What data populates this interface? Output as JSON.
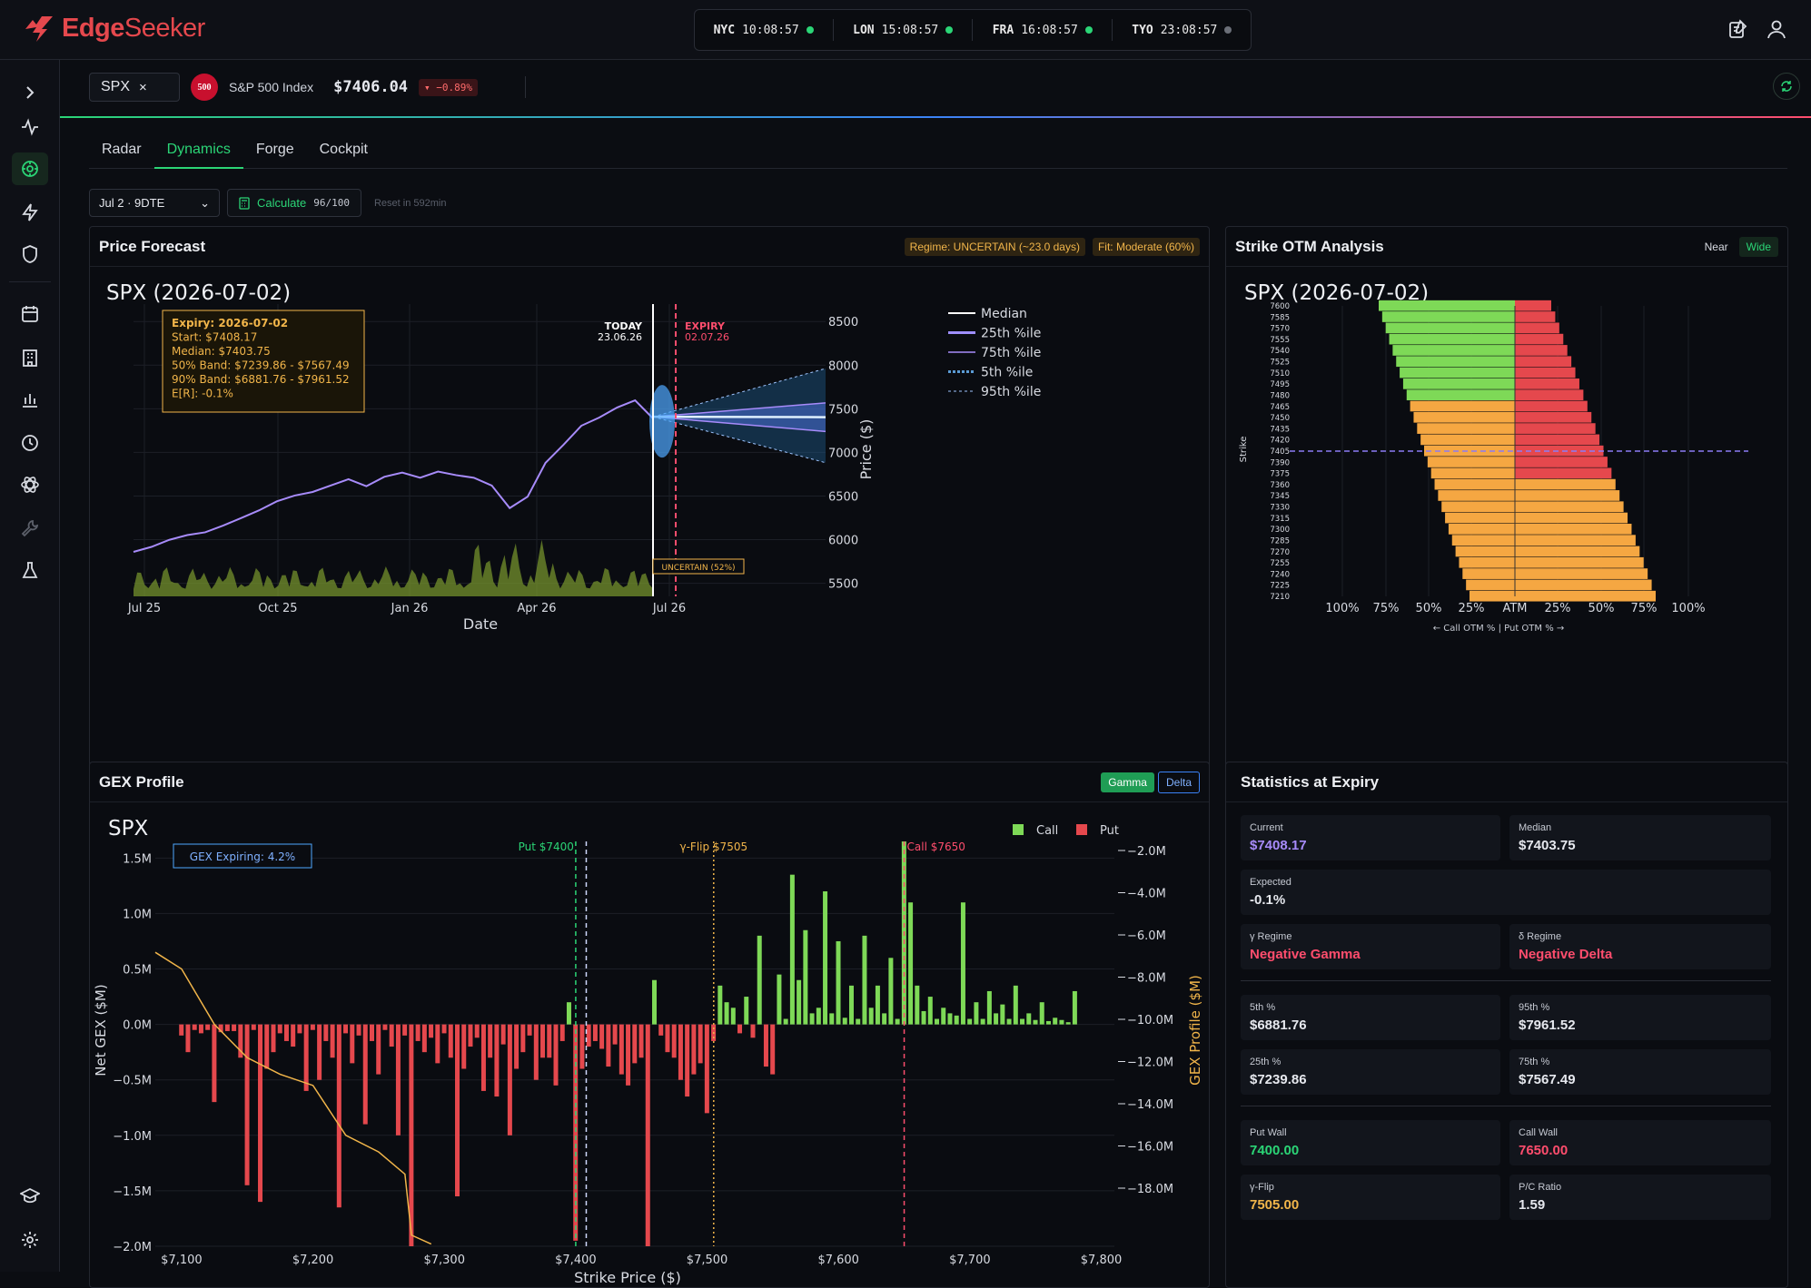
{
  "brand": {
    "name_a": "Edge",
    "name_b": "Seeker",
    "color": "#e5484d"
  },
  "clocks": [
    {
      "city": "NYC",
      "time": "10:08:57",
      "status": "open"
    },
    {
      "city": "LON",
      "time": "15:08:57",
      "status": "open"
    },
    {
      "city": "FRA",
      "time": "16:08:57",
      "status": "open"
    },
    {
      "city": "TYO",
      "time": "23:08:57",
      "status": "closed"
    }
  ],
  "sidebar": {
    "items": [
      "expand-icon",
      "pulse-icon",
      "radar-icon",
      "bolt-icon",
      "shield-icon",
      "calendar-icon",
      "building-icon",
      "chart-icon",
      "clock-icon",
      "atom-icon",
      "wrench-icon",
      "flask-icon",
      "graduation-icon",
      "gear-icon"
    ],
    "active": "radar-icon"
  },
  "ticker": {
    "symbol": "SPX",
    "close": "×",
    "badge": "500",
    "name": "S&P 500 Index",
    "price": "$7406.04",
    "change": "▾ −0.89%"
  },
  "tabs": [
    "Radar",
    "Dynamics",
    "Forge",
    "Cockpit"
  ],
  "active_tab": "Dynamics",
  "toolbar": {
    "expiry": "Jul 2 · 9DTE",
    "calculate": "Calculate",
    "quota": "96/100",
    "reset": "Reset in 592min"
  },
  "forecast": {
    "title": "Price Forecast",
    "regime": "Regime: UNCERTAIN (~23.0 days)",
    "fit": "Fit: Moderate (60%)",
    "chart_title": "SPX (2026-07-02)",
    "tooltip": [
      "Expiry: 2026-07-02",
      "Start: $7408.17",
      "Median: $7403.75",
      "50% Band: $7239.86 - $7567.49",
      "90% Band: $6881.76 - $7961.52",
      "E[R]: -0.1%"
    ],
    "today_label": "TODAY",
    "today_date": "23.06.26",
    "expiry_label": "EXPIRY",
    "expiry_date": "02.07.26",
    "uncertain": "UNCERTAIN (52%)",
    "xlabel": "Date",
    "ylabel": "Price ($)"
  },
  "otm": {
    "title": "Strike OTM Analysis",
    "near": "Near",
    "wide": "Wide",
    "chart_title": "SPX (2026-07-02)",
    "ylabel": "Strike",
    "caption": "← Call OTM %  |  Put OTM % →"
  },
  "gex": {
    "title": "GEX Profile",
    "gamma": "Gamma",
    "delta": "Delta",
    "chart_title": "SPX",
    "legend_call": "Call",
    "legend_put": "Put",
    "expiring": "GEX Expiring: 4.2%",
    "put_label": "Put $7400",
    "flip_label": "γ-Flip $7505",
    "call_label": "Call $7650",
    "xlabel": "Strike Price ($)",
    "ylabel": "Net GEX ($M)",
    "y2label": "GEX Profile ($M)"
  },
  "stats": {
    "title": "Statistics at Expiry",
    "current_l": "Current",
    "current_v": "$7408.17",
    "median_l": "Median",
    "median_v": "$7403.75",
    "expected_l": "Expected",
    "expected_v": "-0.1%",
    "greg_l": "γ Regime",
    "greg_v": "Negative Gamma",
    "dreg_l": "δ Regime",
    "dreg_v": "Negative Delta",
    "p5_l": "5th %",
    "p5_v": "$6881.76",
    "p95_l": "95th %",
    "p95_v": "$7961.52",
    "p25_l": "25th %",
    "p25_v": "$7239.86",
    "p75_l": "75th %",
    "p75_v": "$7567.49",
    "pw_l": "Put Wall",
    "pw_v": "7400.00",
    "cw_l": "Call Wall",
    "cw_v": "7650.00",
    "flip_l": "γ-Flip",
    "flip_v": "7505.00",
    "pc_l": "P/C Ratio",
    "pc_v": "1.59"
  },
  "chart_data": [
    {
      "type": "line",
      "title": "SPX (2026-07-02)",
      "xlabel": "Date",
      "ylabel": "Price ($)",
      "x_ticks": [
        "Jul 25",
        "Oct 25",
        "Jan 26",
        "Apr 26",
        "Jul 26"
      ],
      "y_ticks": [
        5500,
        6000,
        6500,
        7000,
        7500,
        8000,
        8500
      ],
      "ylim": [
        5350,
        8700
      ],
      "legend": [
        "Median",
        "25th %ile",
        "75th %ile",
        "5th %ile",
        "95th %ile"
      ],
      "history": [
        5860,
        5900,
        5980,
        6050,
        6100,
        6180,
        6250,
        6320,
        6420,
        6500,
        6560,
        6640,
        6700,
        6600,
        6700,
        6760,
        6720,
        6800,
        6750,
        6700,
        6600,
        6350,
        6500,
        6900,
        7100,
        7300,
        7380,
        7500,
        7600,
        7408
      ],
      "forecast": {
        "start": 7408.17,
        "median": 7403.75,
        "p25": 7239.86,
        "p75": 7567.49,
        "p5": 6881.76,
        "p95": 7961.52
      }
    },
    {
      "type": "bar",
      "title": "SPX (2026-07-02)",
      "ylabel": "Strike",
      "strikes_top": 7600,
      "strikes_bottom": 7210,
      "step": 15,
      "atm": 7405,
      "x_ticks": [
        "100%",
        "75%",
        "50%",
        "25%",
        "ATM",
        "25%",
        "50%",
        "75%",
        "100%"
      ]
    },
    {
      "type": "bar",
      "title": "SPX",
      "xlabel": "Strike Price ($)",
      "ylabel": "Net GEX ($M)",
      "y2label": "GEX Profile ($M)",
      "x_ticks": [
        "$7,100",
        "$7,200",
        "$7,300",
        "$7,400",
        "$7,500",
        "$7,600",
        "$7,700",
        "$7,800"
      ],
      "y_ticks": [
        "1.5M",
        "1.0M",
        "0.5M",
        "0.0M",
        "−0.5M",
        "−1.0M",
        "−1.5M",
        "−2.0M"
      ],
      "y2_ticks": [
        "−2.0M",
        "−4.0M",
        "−6.0M",
        "−8.0M",
        "−10.0M",
        "−12.0M",
        "−14.0M",
        "−16.0M",
        "−18.0M"
      ],
      "xlim": [
        7080,
        7810
      ],
      "ylim": [
        -2.0,
        1.65
      ],
      "bars": [
        [
          7100,
          -0.1
        ],
        [
          7105,
          -0.25
        ],
        [
          7110,
          -0.05
        ],
        [
          7115,
          -0.08
        ],
        [
          7120,
          -0.05
        ],
        [
          7125,
          -0.7
        ],
        [
          7130,
          -0.07
        ],
        [
          7135,
          -0.06
        ],
        [
          7140,
          -0.06
        ],
        [
          7145,
          -0.3
        ],
        [
          7150,
          -1.45
        ],
        [
          7155,
          -0.05
        ],
        [
          7160,
          -1.6
        ],
        [
          7165,
          -0.4
        ],
        [
          7170,
          -0.25
        ],
        [
          7175,
          -0.08
        ],
        [
          7180,
          -0.15
        ],
        [
          7185,
          -0.2
        ],
        [
          7190,
          -0.08
        ],
        [
          7195,
          -0.6
        ],
        [
          7200,
          -0.05
        ],
        [
          7205,
          -0.5
        ],
        [
          7210,
          -0.15
        ],
        [
          7215,
          -0.3
        ],
        [
          7220,
          -1.65
        ],
        [
          7225,
          -0.08
        ],
        [
          7230,
          -0.35
        ],
        [
          7235,
          -0.1
        ],
        [
          7240,
          -0.9
        ],
        [
          7245,
          -0.15
        ],
        [
          7250,
          -0.45
        ],
        [
          7255,
          -0.05
        ],
        [
          7260,
          -0.2
        ],
        [
          7265,
          -1.0
        ],
        [
          7270,
          -0.1
        ],
        [
          7275,
          -2.0
        ],
        [
          7280,
          -0.15
        ],
        [
          7285,
          -0.25
        ],
        [
          7290,
          -0.12
        ],
        [
          7295,
          -0.35
        ],
        [
          7300,
          -0.08
        ],
        [
          7305,
          -0.3
        ],
        [
          7310,
          -1.55
        ],
        [
          7315,
          -0.4
        ],
        [
          7320,
          -0.2
        ],
        [
          7325,
          -0.12
        ],
        [
          7330,
          -0.6
        ],
        [
          7335,
          -0.3
        ],
        [
          7340,
          -0.65
        ],
        [
          7345,
          -0.18
        ],
        [
          7350,
          -1.0
        ],
        [
          7355,
          -0.4
        ],
        [
          7360,
          -0.25
        ],
        [
          7365,
          -0.1
        ],
        [
          7370,
          -0.5
        ],
        [
          7375,
          -0.3
        ],
        [
          7380,
          -0.3
        ],
        [
          7385,
          -0.55
        ],
        [
          7390,
          -0.15
        ],
        [
          7395,
          0.2
        ],
        [
          7400,
          -1.95
        ],
        [
          7405,
          -0.4
        ],
        [
          7410,
          -0.2
        ],
        [
          7415,
          -0.15
        ],
        [
          7420,
          -0.22
        ],
        [
          7425,
          -0.38
        ],
        [
          7430,
          -0.18
        ],
        [
          7435,
          -0.45
        ],
        [
          7440,
          -0.55
        ],
        [
          7445,
          -0.35
        ],
        [
          7450,
          -0.3
        ],
        [
          7455,
          -2.0
        ],
        [
          7460,
          0.4
        ],
        [
          7465,
          -0.1
        ],
        [
          7470,
          -0.25
        ],
        [
          7475,
          -0.3
        ],
        [
          7480,
          -0.5
        ],
        [
          7485,
          -0.65
        ],
        [
          7490,
          -0.45
        ],
        [
          7495,
          -0.35
        ],
        [
          7500,
          -0.8
        ],
        [
          7505,
          -0.15
        ],
        [
          7510,
          0.35
        ],
        [
          7515,
          0.2
        ],
        [
          7520,
          0.15
        ],
        [
          7525,
          -0.08
        ],
        [
          7530,
          0.25
        ],
        [
          7535,
          -0.12
        ],
        [
          7540,
          0.8
        ],
        [
          7545,
          -0.38
        ],
        [
          7550,
          -0.45
        ],
        [
          7555,
          0.45
        ],
        [
          7560,
          0.05
        ],
        [
          7565,
          1.35
        ],
        [
          7570,
          0.4
        ],
        [
          7575,
          0.85
        ],
        [
          7580,
          0.1
        ],
        [
          7585,
          0.15
        ],
        [
          7590,
          1.2
        ],
        [
          7595,
          0.1
        ],
        [
          7600,
          0.75
        ],
        [
          7605,
          0.06
        ],
        [
          7610,
          0.35
        ],
        [
          7615,
          0.05
        ],
        [
          7620,
          0.8
        ],
        [
          7625,
          0.15
        ],
        [
          7630,
          0.35
        ],
        [
          7635,
          0.1
        ],
        [
          7640,
          0.6
        ],
        [
          7645,
          0.05
        ],
        [
          7650,
          1.65
        ],
        [
          7655,
          1.1
        ],
        [
          7660,
          0.35
        ],
        [
          7665,
          0.12
        ],
        [
          7670,
          0.25
        ],
        [
          7675,
          0.05
        ],
        [
          7680,
          0.15
        ],
        [
          7685,
          0.1
        ],
        [
          7690,
          0.08
        ],
        [
          7695,
          1.1
        ],
        [
          7700,
          0.05
        ],
        [
          7705,
          0.2
        ],
        [
          7710,
          0.05
        ],
        [
          7715,
          0.3
        ],
        [
          7720,
          0.1
        ],
        [
          7725,
          0.18
        ],
        [
          7730,
          0.05
        ],
        [
          7735,
          0.35
        ],
        [
          7740,
          0.05
        ],
        [
          7745,
          0.1
        ],
        [
          7750,
          0.04
        ],
        [
          7755,
          0.2
        ],
        [
          7760,
          0.03
        ],
        [
          7765,
          0.06
        ],
        [
          7770,
          0.04
        ],
        [
          7775,
          0.02
        ],
        [
          7780,
          0.3
        ]
      ]
    }
  ]
}
